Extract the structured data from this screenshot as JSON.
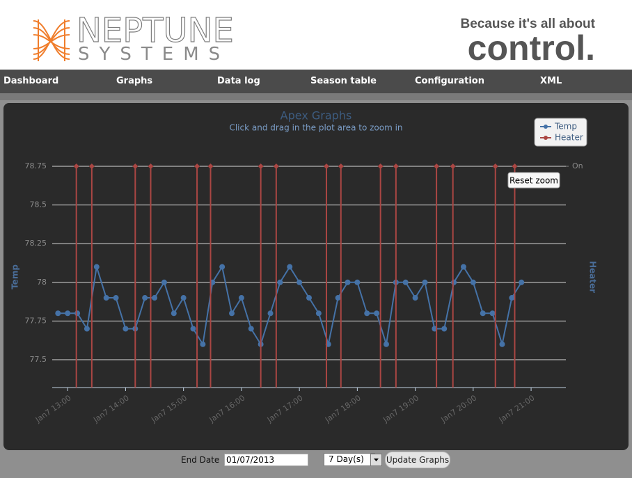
{
  "header": {
    "logo_name": "NEPTUNE",
    "logo_sub": "SYSTEMS",
    "slogan_top": "Because it's all about",
    "slogan_bottom": "control."
  },
  "nav": {
    "items": [
      "Dashboard",
      "Graphs",
      "Data log",
      "Season table",
      "Configuration",
      "XML"
    ]
  },
  "chart_data": {
    "type": "line",
    "title": "Apex Graphs",
    "subtitle": "Click and drag in the plot area to zoom in",
    "ylabel": "Temp",
    "y2label": "Heater",
    "reset_zoom": "Reset zoom",
    "grid": true,
    "legend": "upper-right",
    "xlim": [
      764,
      1296
    ],
    "xticks": [
      {
        "value": 780,
        "label": "Jan7 13:00"
      },
      {
        "value": 840,
        "label": "Jan7 14:00"
      },
      {
        "value": 900,
        "label": "Jan7 15:00"
      },
      {
        "value": 960,
        "label": "Jan7 16:00"
      },
      {
        "value": 1020,
        "label": "Jan7 17:00"
      },
      {
        "value": 1080,
        "label": "Jan7 18:00"
      },
      {
        "value": 1140,
        "label": "Jan7 19:00"
      },
      {
        "value": 1200,
        "label": "Jan7 20:00"
      },
      {
        "value": 1260,
        "label": "Jan7 21:00"
      }
    ],
    "ylim": [
      77.32,
      78.75
    ],
    "yticks": [
      77.5,
      77.75,
      78,
      78.25,
      78.5,
      78.75
    ],
    "y2lim": [
      0,
      1
    ],
    "y2ticks": [
      {
        "value": 1,
        "label": "On"
      }
    ],
    "series": [
      {
        "name": "Temp",
        "color": "#4572a7",
        "x": [
          770,
          780,
          790,
          800,
          810,
          820,
          830,
          840,
          850,
          860,
          870,
          880,
          890,
          900,
          910,
          920,
          930,
          940,
          950,
          960,
          970,
          980,
          990,
          1000,
          1010,
          1020,
          1030,
          1040,
          1050,
          1060,
          1070,
          1080,
          1090,
          1100,
          1110,
          1120,
          1130,
          1140,
          1150,
          1160,
          1170,
          1180,
          1190,
          1200,
          1210,
          1220,
          1230,
          1240,
          1250
        ],
        "values": [
          77.8,
          77.8,
          77.8,
          77.7,
          78.1,
          77.9,
          77.9,
          77.7,
          77.7,
          77.9,
          77.9,
          78.0,
          77.8,
          77.9,
          77.7,
          77.6,
          78.0,
          78.1,
          77.8,
          77.9,
          77.7,
          77.6,
          77.8,
          78.0,
          78.1,
          78.0,
          77.9,
          77.8,
          77.6,
          77.9,
          78.0,
          78.0,
          77.8,
          77.8,
          77.6,
          78.0,
          78.0,
          77.9,
          78.0,
          77.7,
          77.7,
          78.0,
          78.1,
          78.0,
          77.8,
          77.8,
          77.6,
          77.9,
          78.0
        ]
      },
      {
        "name": "Heater",
        "color": "#aa4643",
        "axis": "y2",
        "x": [
          789,
          805,
          850,
          866,
          914,
          928,
          980,
          996,
          1048,
          1063,
          1104,
          1120,
          1162,
          1179,
          1223,
          1243
        ],
        "values": [
          1,
          1,
          1,
          1,
          1,
          1,
          1,
          1,
          1,
          1,
          1,
          1,
          1,
          1,
          1,
          1
        ]
      }
    ]
  },
  "footer": {
    "end_date_label": "End Date",
    "end_date_value": "01/07/2013",
    "range": "7 Day(s)",
    "button": "Update Graphs"
  }
}
